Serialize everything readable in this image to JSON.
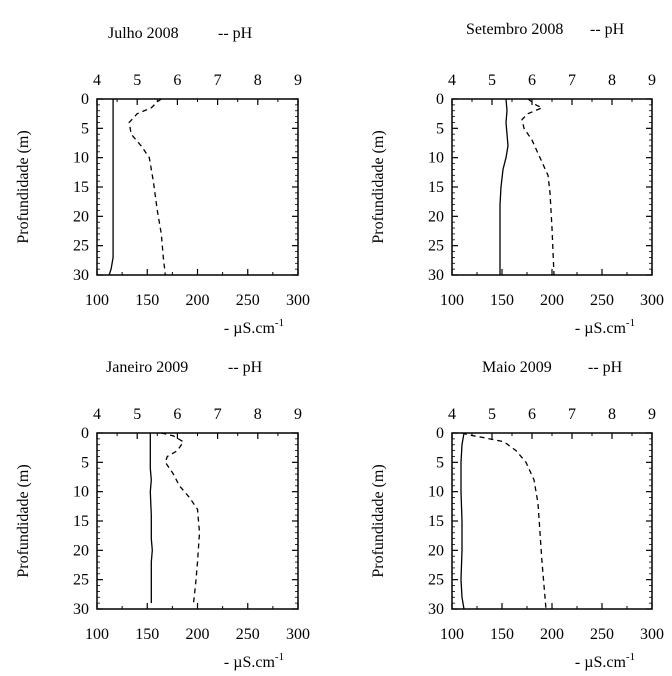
{
  "chart_data": [
    {
      "type": "line",
      "title": "Julho 2008",
      "top_axis_label": "-- pH",
      "bottom_axis_label_prefix": "- ",
      "bottom_axis_label": "µS.cm",
      "bottom_axis_label_sup": "-1",
      "ylabel": "Profundidade (m)",
      "top_axis": {
        "label": "pH",
        "range": [
          4,
          9
        ],
        "ticks": [
          "4",
          "5",
          "6",
          "7",
          "8",
          "9"
        ]
      },
      "bottom_axis": {
        "label": "µS.cm-1",
        "range": [
          100,
          300
        ],
        "ticks": [
          "100",
          "150",
          "200",
          "250",
          "300"
        ]
      },
      "yaxis": {
        "range": [
          0,
          30
        ],
        "inverted": true,
        "ticks": [
          "0",
          "5",
          "10",
          "15",
          "20",
          "25",
          "30"
        ]
      },
      "series": [
        {
          "axis": "bottom",
          "style": "solid",
          "points": [
            [
              116,
              0
            ],
            [
              116,
              5
            ],
            [
              116,
              10
            ],
            [
              116,
              15
            ],
            [
              116,
              20
            ],
            [
              116,
              25
            ],
            [
              116,
              27
            ],
            [
              114,
              29
            ],
            [
              112,
              30
            ]
          ]
        },
        {
          "axis": "top",
          "style": "dashed",
          "points": [
            [
              5.6,
              0
            ],
            [
              5.5,
              0.5
            ],
            [
              5.35,
              1.5
            ],
            [
              5.0,
              2.5
            ],
            [
              4.8,
              4
            ],
            [
              4.85,
              6
            ],
            [
              5.1,
              8
            ],
            [
              5.3,
              10
            ],
            [
              5.4,
              14
            ],
            [
              5.5,
              19
            ],
            [
              5.6,
              23
            ],
            [
              5.65,
              27
            ],
            [
              5.7,
              30
            ]
          ]
        }
      ]
    },
    {
      "type": "line",
      "title": "Setembro 2008",
      "top_axis_label": "-- pH",
      "bottom_axis_label_prefix": "- ",
      "bottom_axis_label": "µS.cm",
      "bottom_axis_label_sup": "-1",
      "ylabel": "Profundidade (m)",
      "top_axis": {
        "label": "pH",
        "range": [
          4,
          9
        ],
        "ticks": [
          "4",
          "5",
          "6",
          "7",
          "8",
          "9"
        ]
      },
      "bottom_axis": {
        "label": "µS.cm-1",
        "range": [
          100,
          300
        ],
        "ticks": [
          "100",
          "150",
          "200",
          "250",
          "300"
        ]
      },
      "yaxis": {
        "range": [
          0,
          30
        ],
        "inverted": true,
        "ticks": [
          "0",
          "5",
          "10",
          "15",
          "20",
          "25",
          "30"
        ]
      },
      "series": [
        {
          "axis": "bottom",
          "style": "solid",
          "points": [
            [
              154,
              0
            ],
            [
              155,
              2
            ],
            [
              154,
              4
            ],
            [
              155,
              6
            ],
            [
              156,
              8
            ],
            [
              154,
              10
            ],
            [
              151,
              12
            ],
            [
              149,
              15
            ],
            [
              148,
              18
            ],
            [
              148,
              22
            ],
            [
              148,
              26
            ],
            [
              148,
              30
            ]
          ]
        },
        {
          "axis": "top",
          "style": "dashed",
          "points": [
            [
              5.9,
              0
            ],
            [
              6.1,
              1
            ],
            [
              6.25,
              1.5
            ],
            [
              5.9,
              2.5
            ],
            [
              5.75,
              3.5
            ],
            [
              5.8,
              5
            ],
            [
              6.0,
              7
            ],
            [
              6.2,
              10
            ],
            [
              6.4,
              13
            ],
            [
              6.45,
              16
            ],
            [
              6.5,
              22
            ],
            [
              6.55,
              30
            ]
          ]
        }
      ]
    },
    {
      "type": "line",
      "title": "Janeiro 2009",
      "top_axis_label": "-- pH",
      "bottom_axis_label_prefix": "- ",
      "bottom_axis_label": "µS.cm",
      "bottom_axis_label_sup": "-1",
      "ylabel": "Profundidade (m)",
      "top_axis": {
        "label": "pH",
        "range": [
          4,
          9
        ],
        "ticks": [
          "4",
          "5",
          "6",
          "7",
          "8",
          "9"
        ]
      },
      "bottom_axis": {
        "label": "µS.cm-1",
        "range": [
          100,
          300
        ],
        "ticks": [
          "100",
          "150",
          "200",
          "250",
          "300"
        ]
      },
      "yaxis": {
        "range": [
          0,
          30
        ],
        "inverted": true,
        "ticks": [
          "0",
          "5",
          "10",
          "15",
          "20",
          "25",
          "30"
        ]
      },
      "series": [
        {
          "axis": "bottom",
          "style": "solid",
          "points": [
            [
              153,
              0
            ],
            [
              153,
              3
            ],
            [
              153,
              6
            ],
            [
              154,
              8
            ],
            [
              153,
              10
            ],
            [
              154,
              14
            ],
            [
              154,
              18
            ],
            [
              155,
              20
            ],
            [
              154,
              22
            ],
            [
              154,
              25
            ],
            [
              154,
              29
            ]
          ]
        },
        {
          "axis": "top",
          "style": "dashed",
          "points": [
            [
              5.6,
              0
            ],
            [
              5.9,
              0.5
            ],
            [
              6.15,
              1.5
            ],
            [
              6.0,
              3
            ],
            [
              5.75,
              4
            ],
            [
              5.7,
              5
            ],
            [
              5.9,
              7
            ],
            [
              6.05,
              9
            ],
            [
              6.3,
              11
            ],
            [
              6.5,
              13
            ],
            [
              6.55,
              17
            ],
            [
              6.5,
              22
            ],
            [
              6.45,
              26
            ],
            [
              6.4,
              29
            ]
          ]
        }
      ]
    },
    {
      "type": "line",
      "title": "Maio 2009",
      "top_axis_label": "-- pH",
      "bottom_axis_label_prefix": "- ",
      "bottom_axis_label": "µS.cm",
      "bottom_axis_label_sup": "-1",
      "ylabel": "Profundidade (m)",
      "top_axis": {
        "label": "pH",
        "range": [
          4,
          9
        ],
        "ticks": [
          "4",
          "5",
          "6",
          "7",
          "8",
          "9"
        ]
      },
      "bottom_axis": {
        "label": "µS.cm-1",
        "range": [
          100,
          300
        ],
        "ticks": [
          "100",
          "150",
          "200",
          "250",
          "300"
        ]
      },
      "yaxis": {
        "range": [
          0,
          30
        ],
        "inverted": true,
        "ticks": [
          "0",
          "5",
          "10",
          "15",
          "20",
          "25",
          "30"
        ]
      },
      "series": [
        {
          "axis": "bottom",
          "style": "solid",
          "points": [
            [
              112,
              0
            ],
            [
              110,
              2
            ],
            [
              109,
              5
            ],
            [
              109,
              10
            ],
            [
              110,
              15
            ],
            [
              110,
              20
            ],
            [
              109,
              25
            ],
            [
              110,
              28
            ],
            [
              112,
              30
            ]
          ]
        },
        {
          "axis": "top",
          "style": "dashed",
          "points": [
            [
              4.25,
              0
            ],
            [
              4.4,
              0.3
            ],
            [
              4.8,
              0.8
            ],
            [
              5.3,
              1.5
            ],
            [
              5.6,
              3
            ],
            [
              5.85,
              5
            ],
            [
              6.05,
              8
            ],
            [
              6.15,
              12
            ],
            [
              6.2,
              17
            ],
            [
              6.25,
              22
            ],
            [
              6.3,
              26
            ],
            [
              6.35,
              30
            ]
          ]
        }
      ]
    }
  ]
}
